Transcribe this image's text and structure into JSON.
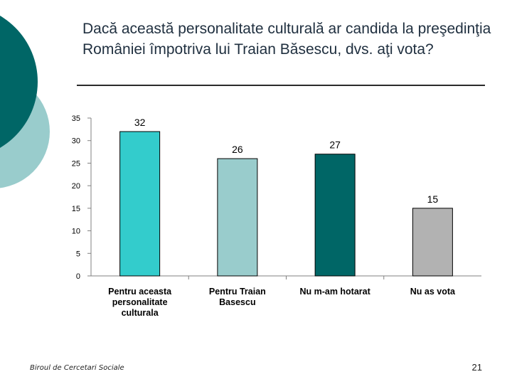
{
  "slide": {
    "title": "Dacă această personalitate culturală ar candida la preşedinţia României împotriva lui Traian Băsescu, dvs. aţi vota?",
    "footer": "Biroul de Cercetari Sociale",
    "page_number": "21"
  },
  "colors": {
    "deco_dark": "#006666",
    "deco_light": "#99cccc"
  },
  "chart_data": {
    "type": "bar",
    "categories": [
      [
        "Pentru aceasta",
        "personalitate",
        "culturala"
      ],
      [
        "Pentru Traian",
        "Basescu"
      ],
      [
        "Nu m-am hotarat"
      ],
      [
        "Nu as vota"
      ]
    ],
    "values": [
      32,
      26,
      27,
      15
    ],
    "value_labels": [
      "32",
      "26",
      "27",
      "15"
    ],
    "colors": [
      "#33cccc",
      "#99cccc",
      "#006666",
      "#b2b2b2"
    ],
    "title": "",
    "xlabel": "",
    "ylabel": "",
    "ylim": [
      0,
      35
    ],
    "yticks": [
      0,
      5,
      10,
      15,
      20,
      25,
      30,
      35
    ],
    "grid": false,
    "legend": "none"
  }
}
